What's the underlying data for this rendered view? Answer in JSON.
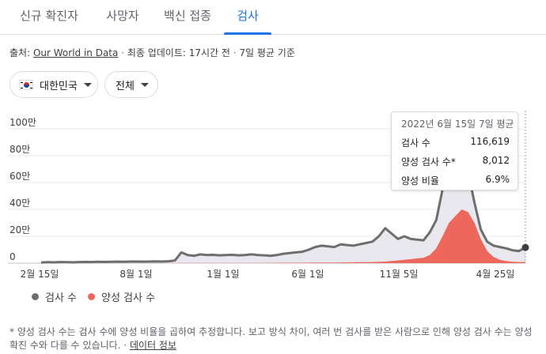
{
  "tabs": [
    {
      "label": "신규 확진자",
      "active": false
    },
    {
      "label": "사망자",
      "active": false
    },
    {
      "label": "백신 접종",
      "active": false
    },
    {
      "label": "검사",
      "active": true
    }
  ],
  "source": {
    "prefix": "출처: ",
    "link": "Our World in Data",
    "sep1": " · ",
    "updated": "최종 업데이트: 17시간 전",
    "sep2": " · ",
    "basis": "7일 평균 기준"
  },
  "filters": {
    "country": "대한민국",
    "range": "전체"
  },
  "tooltip": {
    "date": "2022년 6월 15일 7일 평균",
    "rows": [
      {
        "label": "검사 수",
        "value": "116,619"
      },
      {
        "label": "양성 검사 수*",
        "value": "8,012"
      },
      {
        "label": "양성 비율",
        "value": "6.9%"
      }
    ]
  },
  "legend": {
    "tests": "검사 수",
    "positives": "양성 검사 수"
  },
  "footnote": {
    "text": "* 양성 검사 수는 검사 수에 양성 비율을 곱하여 추정합니다. 보고 방식 차이, 여러 번 검사를 받은 사람으로 인해 양성 검사 수는 양성 확진 수와 다를 수 있습니다. · ",
    "link": "데이터 정보"
  },
  "colors": {
    "accent": "#1a73e8",
    "tests_line": "#6e6e6e",
    "tests_fill": "#e8e8ee",
    "positives": "#ee675c"
  },
  "chart_data": {
    "type": "area",
    "y_ticks": [
      "0",
      "20만",
      "40만",
      "60만",
      "80만",
      "100만"
    ],
    "ylim": [
      0,
      1000000
    ],
    "x_ticks": [
      "2월 15일",
      "8월 1일",
      "1월 1일",
      "6월 1일",
      "11월 5일",
      "4월 25일"
    ],
    "series": [
      {
        "name": "검사 수",
        "x": [
          0,
          0.5,
          1,
          1.5,
          2,
          2.5,
          3,
          3.5,
          4,
          4.5,
          5,
          5.5,
          6,
          6.5,
          7,
          7.5,
          8,
          8.5,
          9,
          9.5,
          10,
          10.5,
          11,
          11.5,
          12,
          12.5,
          13,
          13.5,
          14,
          14.5,
          15,
          15.5,
          16,
          16.5,
          17,
          17.5,
          18,
          18.5,
          19,
          19.5,
          20,
          20.5,
          21,
          21.5,
          22,
          22.5,
          23,
          23.5,
          24,
          24.5,
          25,
          25.5,
          26,
          26.5,
          27,
          27.5,
          28,
          28.5,
          29,
          29.5,
          30,
          30.5,
          31,
          31.5,
          32,
          32.5,
          33,
          33.5,
          34,
          34.5,
          35,
          35.5,
          36,
          36.5,
          37,
          37.5,
          38
        ],
        "values": [
          5000,
          7000,
          6000,
          8000,
          7000,
          6000,
          8000,
          9000,
          8000,
          10000,
          9000,
          10000,
          11000,
          10000,
          12000,
          12000,
          11000,
          12000,
          13000,
          12000,
          14000,
          20000,
          80000,
          60000,
          55000,
          65000,
          60000,
          62000,
          58000,
          60000,
          62000,
          58000,
          60000,
          65000,
          60000,
          58000,
          55000,
          60000,
          70000,
          75000,
          80000,
          85000,
          100000,
          120000,
          130000,
          125000,
          120000,
          140000,
          135000,
          130000,
          140000,
          150000,
          160000,
          200000,
          260000,
          220000,
          180000,
          200000,
          180000,
          175000,
          170000,
          230000,
          320000,
          550000,
          900000,
          950000,
          820000,
          680000,
          450000,
          250000,
          160000,
          130000,
          120000,
          110000,
          95000,
          90000,
          116619
        ]
      },
      {
        "name": "양성 검사 수",
        "x": [
          0,
          1,
          2,
          3,
          4,
          5,
          6,
          7,
          8,
          9,
          10,
          11,
          12,
          13,
          14,
          15,
          16,
          17,
          18,
          19,
          20,
          21,
          22,
          23,
          24,
          25,
          26,
          27,
          28,
          29,
          30,
          30.5,
          31,
          31.5,
          32,
          32.5,
          33,
          33.5,
          34,
          34.5,
          35,
          35.5,
          36,
          36.5,
          37,
          37.5,
          38
        ],
        "values": [
          100,
          120,
          150,
          200,
          200,
          300,
          400,
          500,
          600,
          700,
          800,
          1200,
          1500,
          1200,
          1000,
          1200,
          1500,
          1800,
          2500,
          2800,
          3000,
          3500,
          4500,
          5000,
          6000,
          7000,
          8000,
          12000,
          20000,
          30000,
          40000,
          60000,
          110000,
          200000,
          300000,
          350000,
          400000,
          380000,
          300000,
          180000,
          90000,
          45000,
          25000,
          15000,
          10000,
          8000,
          8012
        ]
      }
    ]
  }
}
